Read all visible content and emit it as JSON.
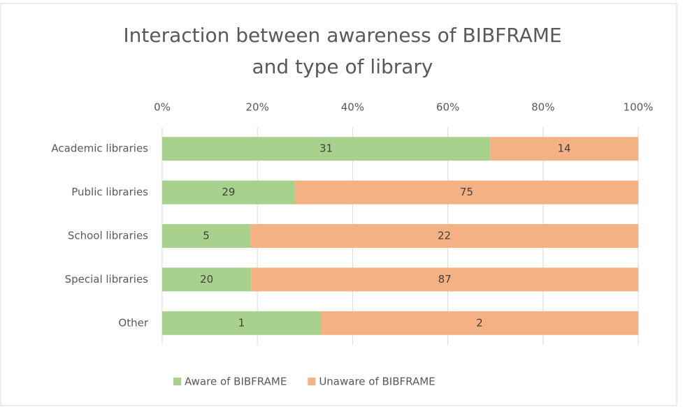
{
  "chart_data": {
    "type": "stacked_bar_100",
    "title": [
      "Interaction between awareness of BIBFRAME",
      "and type of library"
    ],
    "categories": [
      "Academic libraries",
      "Public libraries",
      "School libraries",
      "Special libraries",
      "Other"
    ],
    "series": [
      {
        "name": "Aware of BIBFRAME",
        "color": "#a9d18e",
        "values": [
          31,
          29,
          5,
          20,
          1
        ]
      },
      {
        "name": "Unaware of BIBFRAME",
        "color": "#f4b183",
        "values": [
          14,
          75,
          22,
          87,
          2
        ]
      }
    ],
    "xlim": [
      0,
      100
    ],
    "xticks": [
      {
        "value": 0,
        "label": "0%"
      },
      {
        "value": 20,
        "label": "20%"
      },
      {
        "value": 40,
        "label": "40%"
      },
      {
        "value": 60,
        "label": "60%"
      },
      {
        "value": 80,
        "label": "80%"
      },
      {
        "value": 100,
        "label": "100%"
      }
    ],
    "grid": true,
    "legend": "bottom"
  }
}
